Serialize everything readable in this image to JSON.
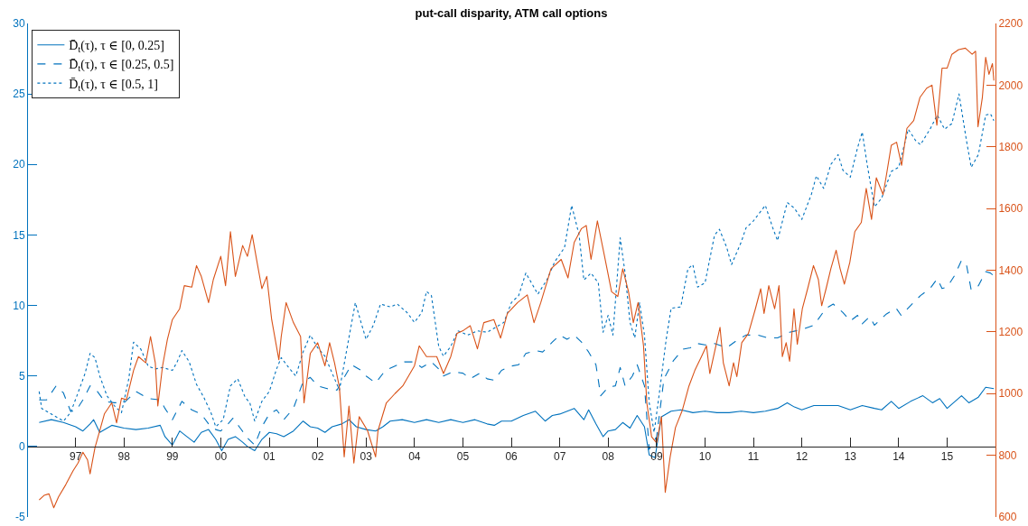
{
  "chart_data": {
    "type": "line",
    "title": "put-call disparity, ATM call options",
    "xlim": [
      "1996-01-01",
      "2016-01-01"
    ],
    "xticks": [
      {
        "value": "1997-01-01",
        "label": "97"
      },
      {
        "value": "1998-01-01",
        "label": "98"
      },
      {
        "value": "1999-01-01",
        "label": "99"
      },
      {
        "value": "2000-01-01",
        "label": "00"
      },
      {
        "value": "2001-01-01",
        "label": "01"
      },
      {
        "value": "2002-01-01",
        "label": "02"
      },
      {
        "value": "2003-01-01",
        "label": "03"
      },
      {
        "value": "2004-01-01",
        "label": "04"
      },
      {
        "value": "2005-01-01",
        "label": "05"
      },
      {
        "value": "2006-01-01",
        "label": "06"
      },
      {
        "value": "2007-01-01",
        "label": "07"
      },
      {
        "value": "2008-01-01",
        "label": "08"
      },
      {
        "value": "2009-01-01",
        "label": "09"
      },
      {
        "value": "2010-01-01",
        "label": "10"
      },
      {
        "value": "2011-01-01",
        "label": "11"
      },
      {
        "value": "2012-01-01",
        "label": "12"
      },
      {
        "value": "2013-01-01",
        "label": "13"
      },
      {
        "value": "2014-01-01",
        "label": "14"
      },
      {
        "value": "2015-01-01",
        "label": "15"
      }
    ],
    "ylim": [
      -5,
      30
    ],
    "yticks": [
      -5,
      0,
      5,
      10,
      15,
      20,
      25,
      30
    ],
    "y2lim": [
      600,
      2200
    ],
    "y2ticks": [
      600,
      800,
      1000,
      1200,
      1400,
      1600,
      1800,
      2000,
      2200
    ],
    "legend": "top left",
    "series": [
      {
        "name": "D̄$_{t}$(τ), τ ∈ [0, 0.25]",
        "color": "#0072bd",
        "line_style": "solid",
        "x": [
          "1996-04-01",
          "1996-07-02",
          "1996-10-01",
          "1997-01-01",
          "1997-02-25",
          "1997-04-20",
          "1997-05-17",
          "1997-07-02",
          "1997-10-01",
          "1998-01-01",
          "1998-04-01",
          "1998-07-02",
          "1998-10-01",
          "1998-11-06",
          "1999-01-01",
          "1999-02-25",
          "1999-04-20",
          "1999-06-14",
          "1999-08-07",
          "1999-10-01",
          "1999-11-24",
          "2000-01-08",
          "2000-02-25",
          "2000-04-20",
          "2000-06-14",
          "2000-07-20",
          "2000-09-13",
          "2000-11-06",
          "2001-01-01",
          "2001-02-25",
          "2001-04-20",
          "2001-07-02",
          "2001-09-13",
          "2001-11-06",
          "2002-01-01",
          "2002-02-25",
          "2002-04-20",
          "2002-07-02",
          "2002-08-25",
          "2002-10-19",
          "2003-01-01",
          "2003-03-14",
          "2003-05-08",
          "2003-07-02",
          "2003-10-01",
          "2004-01-01",
          "2004-04-01",
          "2004-07-02",
          "2004-10-01",
          "2005-01-01",
          "2005-04-01",
          "2005-07-02",
          "2005-08-25",
          "2005-10-19",
          "2006-01-01",
          "2006-04-01",
          "2006-07-02",
          "2006-09-13",
          "2006-11-06",
          "2007-01-01",
          "2007-04-20",
          "2007-07-02",
          "2007-08-07",
          "2007-10-01",
          "2007-11-24",
          "2008-01-01",
          "2008-02-25",
          "2008-04-20",
          "2008-06-14",
          "2008-08-07",
          "2008-10-01",
          "2008-11-06",
          "2008-12-20",
          "2009-02-06",
          "2009-04-20",
          "2009-07-02",
          "2009-10-01",
          "2010-01-01",
          "2010-04-01",
          "2010-07-02",
          "2010-10-01",
          "2011-01-01",
          "2011-04-01",
          "2011-07-02",
          "2011-09-13",
          "2011-11-06",
          "2012-01-01",
          "2012-04-01",
          "2012-07-02",
          "2012-10-01",
          "2013-01-01",
          "2013-04-01",
          "2013-07-02",
          "2013-08-25",
          "2013-11-06",
          "2014-01-01",
          "2014-04-01",
          "2014-07-02",
          "2014-09-13",
          "2014-11-06",
          "2015-01-01",
          "2015-04-20",
          "2015-06-14",
          "2015-08-25",
          "2015-10-19",
          "2015-12-20"
        ],
        "values": [
          1.7,
          1.9,
          1.7,
          1.4,
          1.1,
          1.6,
          1.9,
          1.0,
          1.5,
          1.3,
          1.2,
          1.3,
          1.5,
          0.7,
          0.1,
          1.1,
          0.7,
          0.3,
          1.0,
          1.2,
          0.5,
          -0.3,
          0.5,
          0.7,
          0.3,
          0,
          -0.3,
          0.5,
          1.0,
          0.9,
          0.7,
          1.1,
          1.8,
          1.4,
          1.3,
          1.0,
          1.4,
          1.6,
          1.9,
          1.4,
          1.2,
          1.1,
          1.4,
          1.8,
          1.9,
          1.7,
          1.9,
          1.7,
          1.9,
          1.7,
          1.9,
          1.6,
          1.5,
          1.8,
          1.8,
          2.2,
          2.5,
          1.8,
          2.2,
          2.3,
          2.7,
          1.9,
          2.6,
          1.6,
          0.7,
          1.1,
          1.2,
          1.7,
          1.3,
          2.2,
          1.4,
          -0.6,
          -0.8,
          2.1,
          2.5,
          2.6,
          2.4,
          2.5,
          2.4,
          2.4,
          2.5,
          2.4,
          2.5,
          2.7,
          3.1,
          2.8,
          2.6,
          2.9,
          2.9,
          2.9,
          2.6,
          2.9,
          2.7,
          2.6,
          3.2,
          2.7,
          3.2,
          3.6,
          3.1,
          3.4,
          2.7,
          3.6,
          3.1,
          3.5,
          4.2,
          4.1
        ]
      },
      {
        "name": "D̄$_{t}$(τ), τ ∈ [0.25, 0.5]",
        "color": "#0072bd",
        "line_style": "dashed",
        "x": [
          "1996-04-01",
          "1996-05-27",
          "1996-08-07",
          "1996-10-01",
          "1996-11-24",
          "1997-01-01",
          "1997-02-25",
          "1997-04-20",
          "1997-06-14",
          "1997-08-07",
          "1997-10-19",
          "1998-01-01",
          "1998-04-01",
          "1998-07-02",
          "1998-10-01",
          "1998-11-06",
          "1999-01-01",
          "1999-03-14",
          "1999-05-27",
          "1999-08-07",
          "1999-10-01",
          "1999-11-24",
          "2000-01-01",
          "2000-02-25",
          "2000-04-01",
          "2000-05-27",
          "2000-07-20",
          "2000-09-13",
          "2000-11-06",
          "2001-01-01",
          "2001-02-25",
          "2001-04-20",
          "2001-07-02",
          "2001-09-13",
          "2001-11-06",
          "2002-01-01",
          "2002-03-14",
          "2002-05-27",
          "2002-07-20",
          "2002-09-13",
          "2002-11-24",
          "2003-01-01",
          "2003-03-14",
          "2003-05-27",
          "2003-08-07",
          "2003-10-19",
          "2004-01-01",
          "2004-02-25",
          "2004-05-08",
          "2004-07-02",
          "2004-08-07",
          "2004-10-19",
          "2005-01-01",
          "2005-02-25",
          "2005-05-08",
          "2005-07-02",
          "2005-08-25",
          "2005-10-19",
          "2006-01-01",
          "2006-02-25",
          "2006-04-20",
          "2006-07-02",
          "2006-08-25",
          "2006-11-06",
          "2007-01-01",
          "2007-02-25",
          "2007-04-20",
          "2007-06-14",
          "2007-08-07",
          "2007-10-01",
          "2007-11-06",
          "2008-01-01",
          "2008-02-25",
          "2008-04-01",
          "2008-05-08",
          "2008-07-02",
          "2008-08-07",
          "2008-10-01",
          "2008-11-06",
          "2009-01-01",
          "2009-02-25",
          "2009-05-08",
          "2009-07-20",
          "2009-09-13",
          "2009-11-06",
          "2010-01-01",
          "2010-03-14",
          "2010-06-14",
          "2010-08-25",
          "2010-11-06",
          "2011-02-06",
          "2011-04-20",
          "2011-07-02",
          "2011-10-01",
          "2012-01-01",
          "2012-04-01",
          "2012-07-02",
          "2012-08-25",
          "2012-11-06",
          "2013-01-01",
          "2013-02-25",
          "2013-04-01",
          "2013-05-27",
          "2013-07-02",
          "2013-10-01",
          "2013-12-13",
          "2014-01-19",
          "2014-04-01",
          "2014-06-14",
          "2014-08-25",
          "2014-10-19",
          "2014-11-24",
          "2015-01-01",
          "2015-02-25",
          "2015-04-20",
          "2015-05-27",
          "2015-07-02",
          "2015-08-25",
          "2015-10-19",
          "2015-11-24",
          "2015-12-20"
        ],
        "values": [
          3.3,
          3.3,
          4.3,
          3.8,
          2.5,
          2.5,
          3.3,
          4.3,
          3.9,
          3.2,
          3.1,
          3.1,
          3.9,
          3.4,
          3.3,
          2.7,
          1.9,
          3.2,
          2.6,
          2.3,
          1.6,
          1.2,
          1.1,
          1.6,
          2.0,
          1.3,
          0.6,
          0.1,
          1.4,
          2.3,
          2.6,
          1.9,
          2.7,
          4.6,
          4.9,
          4.3,
          4.1,
          4.0,
          4.9,
          5.8,
          5.4,
          5.0,
          4.5,
          5.4,
          5.7,
          6.0,
          6.0,
          5.6,
          6.0,
          5.5,
          5.0,
          5.3,
          5.2,
          4.8,
          5.2,
          4.8,
          4.7,
          5.4,
          5.7,
          5.8,
          6.6,
          6.8,
          6.7,
          7.4,
          7.9,
          7.6,
          7.9,
          7.4,
          6.7,
          5.8,
          3.6,
          4.2,
          4.3,
          5.6,
          4.3,
          5.0,
          5.8,
          4.3,
          -0.2,
          0.7,
          4.8,
          6.1,
          6.9,
          7.0,
          7.3,
          7.2,
          7.3,
          7.0,
          7.5,
          7.9,
          7.9,
          7.7,
          7.7,
          8.1,
          8.3,
          8.6,
          9.8,
          10.1,
          9.5,
          8.9,
          9.3,
          8.7,
          9.2,
          8.6,
          9.4,
          9.8,
          9.3,
          10.0,
          10.7,
          11.2,
          11.9,
          11.2,
          11.3,
          12.1,
          13.2,
          12.9,
          11.1,
          11.4,
          12.4,
          12.3,
          12.1
        ]
      },
      {
        "name": "D̄$_{t}$(τ), τ ∈ [0.5, 1]",
        "color": "#0072bd",
        "line_style": "dotted",
        "x": [
          "1996-04-01",
          "1996-04-20",
          "1996-06-14",
          "1996-08-07",
          "1996-10-01",
          "1996-11-24",
          "1997-01-19",
          "1997-03-14",
          "1997-04-20",
          "1997-05-27",
          "1997-07-02",
          "1997-08-25",
          "1997-10-19",
          "1997-12-13",
          "1998-02-06",
          "1998-03-14",
          "1998-05-08",
          "1998-07-02",
          "1998-08-25",
          "1998-10-19",
          "1999-01-01",
          "1999-02-06",
          "1999-03-14",
          "1999-05-08",
          "1999-07-02",
          "1999-08-25",
          "1999-10-19",
          "1999-11-24",
          "2000-01-19",
          "2000-03-14",
          "2000-05-08",
          "2000-07-02",
          "2000-08-07",
          "2000-09-13",
          "2000-11-06",
          "2001-01-01",
          "2001-02-25",
          "2001-04-01",
          "2001-05-27",
          "2001-07-20",
          "2001-09-13",
          "2001-11-06",
          "2002-01-01",
          "2002-02-25",
          "2002-04-20",
          "2002-06-14",
          "2002-10-12",
          "2002-11-24",
          "2003-01-01",
          "2003-02-25",
          "2003-04-20",
          "2003-07-02",
          "2003-08-25",
          "2003-11-06",
          "2004-01-01",
          "2004-02-25",
          "2004-04-01",
          "2004-05-08",
          "2004-07-02",
          "2004-08-07",
          "2004-10-01",
          "2004-11-24",
          "2005-02-06",
          "2005-04-20",
          "2005-07-02",
          "2005-09-13",
          "2005-11-06",
          "2006-01-01",
          "2006-02-25",
          "2006-04-20",
          "2006-06-14",
          "2006-07-20",
          "2006-10-01",
          "2006-11-24",
          "2007-02-06",
          "2007-04-01",
          "2007-05-27",
          "2007-07-02",
          "2007-08-25",
          "2007-10-19",
          "2007-11-24",
          "2008-01-01",
          "2008-02-06",
          "2008-04-01",
          "2008-05-08",
          "2008-06-14",
          "2008-07-20",
          "2008-08-25",
          "2008-10-01",
          "2008-11-06",
          "2008-12-13",
          "2009-01-19",
          "2009-03-14",
          "2009-04-20",
          "2009-07-02",
          "2009-08-25",
          "2009-10-01",
          "2009-11-06",
          "2010-01-01",
          "2010-03-14",
          "2010-04-20",
          "2010-06-14",
          "2010-07-20",
          "2010-10-01",
          "2010-11-06",
          "2011-01-01",
          "2011-04-01",
          "2011-05-27",
          "2011-07-02",
          "2011-09-13",
          "2011-11-06",
          "2012-01-01",
          "2012-03-14",
          "2012-04-20",
          "2012-06-14",
          "2012-08-07",
          "2012-10-01",
          "2012-11-06",
          "2013-01-01",
          "2013-02-25",
          "2013-04-01",
          "2013-05-08",
          "2013-07-02",
          "2013-08-25",
          "2013-11-06",
          "2014-01-01",
          "2014-03-14",
          "2014-05-08",
          "2014-06-14",
          "2014-08-25",
          "2014-10-19",
          "2014-12-13",
          "2015-02-06",
          "2015-04-01",
          "2015-05-27",
          "2015-07-02",
          "2015-08-25",
          "2015-10-19",
          "2015-11-24",
          "2015-12-20"
        ],
        "values": [
          3.9,
          2.7,
          2.4,
          2.1,
          1.8,
          2.4,
          3.8,
          5.2,
          6.6,
          6.3,
          5.0,
          3.6,
          2.9,
          2.4,
          4.8,
          7.4,
          6.9,
          5.7,
          5.5,
          5.6,
          5.4,
          6.0,
          6.8,
          6.0,
          4.4,
          3.5,
          2.4,
          1.4,
          1.9,
          4.3,
          4.8,
          3.5,
          3.1,
          1.8,
          3.2,
          3.9,
          5.5,
          6.3,
          5.6,
          5.0,
          6.7,
          7.9,
          7.0,
          6.4,
          5.2,
          4.0,
          10.2,
          8.8,
          7.6,
          8.6,
          10.1,
          9.9,
          10.1,
          9.5,
          8.8,
          9.5,
          11.0,
          10.7,
          7.1,
          6.4,
          7.1,
          8.2,
          7.9,
          8.2,
          8.1,
          8.5,
          8.8,
          10.2,
          10.7,
          12.3,
          11.4,
          10.8,
          11.9,
          13.1,
          14.1,
          17.1,
          15.0,
          11.8,
          12.3,
          11.6,
          8.1,
          9.3,
          7.9,
          14.8,
          12.3,
          8.8,
          7.7,
          10.2,
          7.9,
          3.1,
          1.0,
          3.6,
          7.6,
          9.8,
          9.9,
          12.6,
          12.9,
          11.3,
          11.6,
          15.0,
          15.4,
          14.1,
          12.9,
          14.5,
          15.5,
          16.0,
          17.1,
          15.5,
          14.6,
          17.3,
          16.9,
          16.1,
          17.9,
          19.2,
          18.3,
          20.0,
          20.7,
          19.6,
          19.1,
          21.2,
          22.3,
          20.0,
          17.0,
          17.6,
          19.5,
          19.8,
          22.5,
          21.7,
          21.4,
          22.5,
          23.5,
          22.5,
          22.9,
          25.0,
          21.7,
          19.8,
          20.7,
          23.5,
          23.6,
          23.1
        ]
      },
      {
        "color": "#d95319",
        "line_style": "solid",
        "axis": "y2",
        "x": [
          "1996-04-01",
          "1996-05-08",
          "1996-06-14",
          "1996-07-20",
          "1996-08-25",
          "1996-10-19",
          "1996-12-13",
          "1997-01-19",
          "1997-02-25",
          "1997-04-01",
          "1997-04-20",
          "1997-05-27",
          "1997-07-02",
          "1997-08-07",
          "1997-10-01",
          "1997-11-06",
          "1997-12-13",
          "1998-01-19",
          "1998-03-14",
          "1998-04-20",
          "1998-06-14",
          "1998-07-20",
          "1998-08-25",
          "1998-09-13",
          "1998-10-19",
          "1998-11-24",
          "1999-01-01",
          "1999-02-25",
          "1999-04-01",
          "1999-05-27",
          "1999-07-02",
          "1999-08-07",
          "1999-10-01",
          "1999-11-06",
          "2000-01-01",
          "2000-02-06",
          "2000-03-14",
          "2000-04-20",
          "2000-06-14",
          "2000-07-20",
          "2000-08-25",
          "2000-10-01",
          "2000-11-06",
          "2000-12-13",
          "2001-01-19",
          "2001-03-14",
          "2001-04-01",
          "2001-05-08",
          "2001-07-02",
          "2001-08-25",
          "2001-09-20",
          "2001-11-06",
          "2002-01-01",
          "2002-02-25",
          "2002-04-01",
          "2002-05-08",
          "2002-06-14",
          "2002-07-20",
          "2002-08-25",
          "2002-10-01",
          "2002-11-10",
          "2003-01-12",
          "2003-03-14",
          "2003-04-01",
          "2003-06-03",
          "2003-08-07",
          "2003-10-05",
          "2004-01-01",
          "2004-02-06",
          "2004-04-01",
          "2004-06-17",
          "2004-08-07",
          "2004-10-01",
          "2004-11-17",
          "2005-01-05",
          "2005-02-25",
          "2005-04-20",
          "2005-06-07",
          "2005-08-22",
          "2005-10-12",
          "2005-12-02",
          "2006-02-17",
          "2006-05-01",
          "2006-06-21",
          "2006-08-11",
          "2006-10-27",
          "2007-01-12",
          "2007-03-04",
          "2007-04-20",
          "2007-06-14",
          "2007-07-20",
          "2007-08-25",
          "2007-10-12",
          "2007-12-05",
          "2008-01-27",
          "2008-03-14",
          "2008-04-20",
          "2008-06-03",
          "2008-07-09",
          "2008-08-14",
          "2008-09-24",
          "2008-10-19",
          "2008-11-24",
          "2009-01-01",
          "2009-02-06",
          "2009-03-07",
          "2009-04-13",
          "2009-05-23",
          "2009-07-13",
          "2009-09-02",
          "2009-10-16",
          "2009-12-05",
          "2010-01-12",
          "2010-02-06",
          "2010-03-29",
          "2010-04-24",
          "2010-05-19",
          "2010-07-02",
          "2010-08-04",
          "2010-08-29",
          "2010-10-05",
          "2010-11-24",
          "2011-01-16",
          "2011-02-25",
          "2011-03-22",
          "2011-04-27",
          "2011-06-10",
          "2011-07-13",
          "2011-08-07",
          "2011-09-05",
          "2011-10-01",
          "2011-11-03",
          "2011-11-28",
          "2012-01-05",
          "2012-02-14",
          "2012-03-29",
          "2012-05-05",
          "2012-05-30",
          "2012-07-02",
          "2012-08-07",
          "2012-09-16",
          "2012-10-16",
          "2012-11-17",
          "2012-12-28",
          "2013-02-04",
          "2013-03-25",
          "2013-05-01",
          "2013-06-10",
          "2013-07-16",
          "2013-09-05",
          "2013-10-01",
          "2013-11-06",
          "2013-12-16",
          "2014-01-23",
          "2014-03-04",
          "2014-04-24",
          "2014-06-10",
          "2014-07-31",
          "2014-09-09",
          "2014-10-16",
          "2014-11-24",
          "2015-01-01",
          "2015-02-06",
          "2015-03-29",
          "2015-05-19",
          "2015-07-09",
          "2015-08-04",
          "2015-08-22",
          "2015-09-24",
          "2015-10-19",
          "2015-11-13",
          "2015-12-09",
          "2015-12-20"
        ],
        "values": [
          655,
          670,
          675,
          630,
          665,
          705,
          750,
          775,
          810,
          785,
          740,
          825,
          880,
          935,
          970,
          905,
          985,
          980,
          1075,
          1120,
          1100,
          1185,
          1100,
          960,
          1090,
          1175,
          1240,
          1275,
          1350,
          1345,
          1415,
          1380,
          1295,
          1370,
          1445,
          1350,
          1525,
          1380,
          1480,
          1445,
          1515,
          1425,
          1340,
          1380,
          1240,
          1110,
          1185,
          1295,
          1230,
          1185,
          970,
          1130,
          1165,
          1090,
          1165,
          1100,
          1020,
          795,
          960,
          775,
          925,
          880,
          795,
          880,
          970,
          1000,
          1025,
          1090,
          1155,
          1120,
          1120,
          1065,
          1120,
          1195,
          1205,
          1220,
          1145,
          1230,
          1240,
          1180,
          1260,
          1295,
          1320,
          1230,
          1295,
          1405,
          1435,
          1375,
          1490,
          1535,
          1545,
          1435,
          1560,
          1445,
          1330,
          1315,
          1405,
          1330,
          1230,
          1295,
          1155,
          970,
          860,
          840,
          925,
          680,
          795,
          890,
          945,
          1025,
          1075,
          1120,
          1155,
          1065,
          1165,
          1215,
          1100,
          1025,
          1100,
          1055,
          1165,
          1195,
          1275,
          1340,
          1260,
          1350,
          1275,
          1350,
          1120,
          1165,
          1105,
          1275,
          1160,
          1275,
          1340,
          1415,
          1370,
          1285,
          1340,
          1405,
          1465,
          1405,
          1355,
          1425,
          1525,
          1555,
          1665,
          1565,
          1700,
          1645,
          1710,
          1805,
          1815,
          1740,
          1860,
          1885,
          1960,
          1990,
          2000,
          1870,
          2055,
          2055,
          2100,
          2115,
          2120,
          2100,
          2110,
          1865,
          1960,
          2090,
          2035,
          2070,
          2015
        ]
      }
    ]
  }
}
